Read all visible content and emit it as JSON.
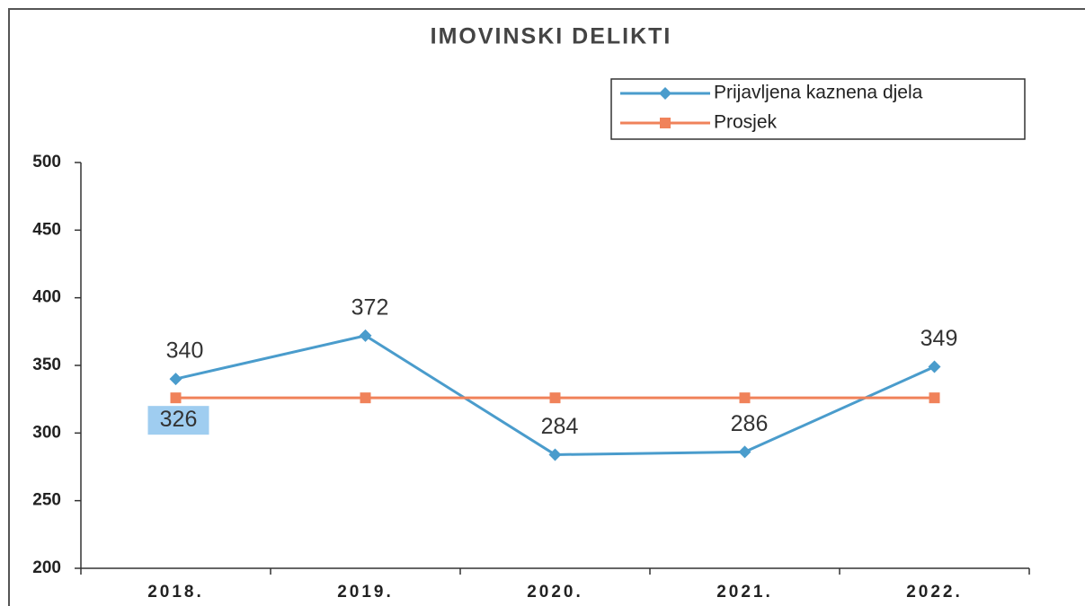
{
  "chart_data": {
    "type": "line",
    "title": "IMOVINSKI DELIKTI",
    "categories": [
      "2018.",
      "2019.",
      "2020.",
      "2021.",
      "2022."
    ],
    "series": [
      {
        "name": "Prijavljena kaznena djela",
        "color": "#4a9ccc",
        "marker": "diamond",
        "values": [
          340,
          372,
          284,
          286,
          349
        ],
        "value_labels": [
          "340",
          "372",
          "284",
          "286",
          "349"
        ]
      },
      {
        "name": "Prosjek",
        "color": "#f0825a",
        "marker": "square",
        "values": [
          326,
          326,
          326,
          326,
          326
        ],
        "value_labels": [
          "326",
          null,
          null,
          null,
          null
        ]
      }
    ],
    "ylim": [
      200,
      500
    ],
    "yticks": [
      200,
      250,
      300,
      350,
      400,
      450,
      500
    ],
    "grid": false,
    "legend": "top-right"
  }
}
